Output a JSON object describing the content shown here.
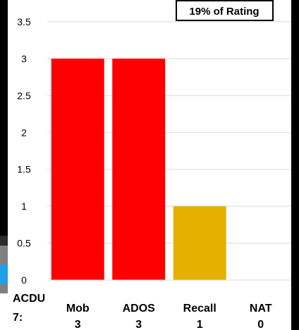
{
  "chart_data": {
    "type": "bar",
    "categories": [
      "Mob",
      "ADOS",
      "Recall",
      "NAT"
    ],
    "category_values_text": [
      "3",
      "3",
      "1",
      "0"
    ],
    "values": [
      3,
      3,
      1,
      0
    ],
    "bar_colors": [
      "#ff0000",
      "#ff0000",
      "#e6b000",
      "#ff0000"
    ],
    "ylim": [
      0,
      3.5
    ],
    "y_ticks": [
      "0",
      "0.5",
      "1",
      "1.5",
      "2",
      "2.5",
      "3",
      "3.5"
    ],
    "grid": true,
    "title": "",
    "xlabel": "",
    "ylabel": "",
    "row_label": [
      "ACDU",
      "7:"
    ],
    "annotation": "19% of Rating"
  }
}
